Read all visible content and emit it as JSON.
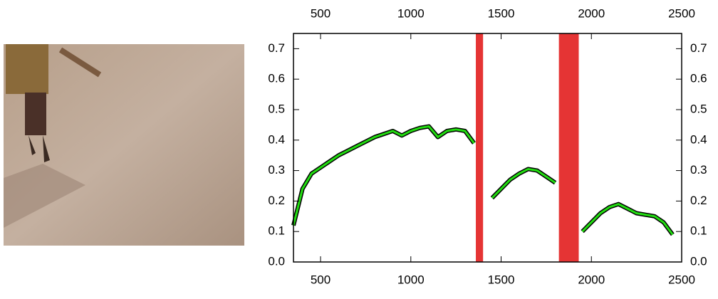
{
  "chart_data": {
    "type": "line",
    "x": [
      350,
      400,
      450,
      500,
      550,
      600,
      650,
      700,
      750,
      800,
      850,
      900,
      950,
      1000,
      1050,
      1100,
      1150,
      1200,
      1250,
      1300,
      1350,
      1400,
      1450,
      1500,
      1550,
      1600,
      1650,
      1700,
      1750,
      1800,
      1850,
      1900,
      1950,
      2000,
      2050,
      2100,
      2150,
      2200,
      2250,
      2300,
      2350,
      2400,
      2450,
      2500
    ],
    "values": [
      0.12,
      0.24,
      0.29,
      0.31,
      0.33,
      0.35,
      0.365,
      0.38,
      0.395,
      0.41,
      0.42,
      0.43,
      0.415,
      0.43,
      0.44,
      0.445,
      0.41,
      0.43,
      0.435,
      0.43,
      0.39,
      null,
      0.21,
      0.24,
      0.27,
      0.29,
      0.305,
      0.3,
      0.28,
      0.26,
      null,
      null,
      0.1,
      0.13,
      0.16,
      0.18,
      0.19,
      0.175,
      0.16,
      0.155,
      0.15,
      0.13,
      0.09,
      null
    ],
    "color": "#22dd11",
    "bands": [
      [
        1360,
        1400
      ],
      [
        1820,
        1930
      ]
    ],
    "band_color": "#e01010",
    "xlim": [
      350,
      2500
    ],
    "xticks": [
      500,
      1000,
      1500,
      2000,
      2500
    ],
    "ylim": [
      0,
      0.75
    ],
    "yticks": [
      {
        "value": 0,
        "label": "0.0"
      },
      0.1,
      0.2,
      0.3,
      0.4,
      0.5,
      0.6,
      0.7
    ]
  }
}
